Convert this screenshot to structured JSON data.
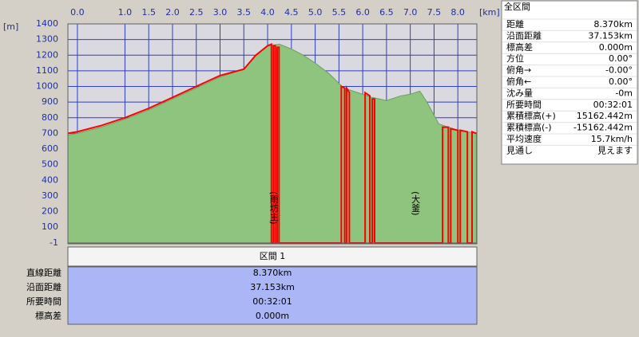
{
  "chart_data": {
    "type": "profile",
    "x_unit": "[km]",
    "y_unit": "[m]",
    "xlim": [
      -0.2,
      8.4
    ],
    "ylim": [
      -1,
      1400
    ],
    "xticks": [
      {
        "value": 0,
        "label": "0.0"
      },
      {
        "value": 1,
        "label": "1.0"
      },
      1.5,
      {
        "value": 2,
        "label": "2.0"
      },
      2.5,
      {
        "value": 3,
        "label": "3.0"
      },
      3.5,
      {
        "value": 4,
        "label": "4.0"
      },
      4.5,
      {
        "value": 5,
        "label": "5.0"
      },
      5.5,
      {
        "value": 6,
        "label": "6.0"
      },
      6.5,
      {
        "value": 7,
        "label": "7.0"
      },
      7.5,
      {
        "value": 8,
        "label": "8.0"
      }
    ],
    "yticks": [
      -1,
      100,
      200,
      300,
      400,
      500,
      600,
      700,
      800,
      900,
      1000,
      1100,
      1200,
      1300,
      1400
    ],
    "grid": true,
    "series": [
      {
        "color": "#8fc47e",
        "fill": true,
        "x": [
          -0.2,
          0,
          0.5,
          1.0,
          1.5,
          2.0,
          2.5,
          3.0,
          3.5,
          3.75,
          4.0,
          4.25,
          4.5,
          4.75,
          5.0,
          5.3,
          5.6,
          5.9,
          6.2,
          6.5,
          6.8,
          7.0,
          7.2,
          7.35,
          7.6,
          8.0,
          8.39
        ],
        "values": [
          690,
          700,
          740,
          790,
          850,
          920,
          990,
          1060,
          1110,
          1200,
          1260,
          1270,
          1240,
          1200,
          1150,
          1080,
          990,
          960,
          930,
          910,
          940,
          950,
          970,
          900,
          760,
          720,
          700
        ]
      },
      {
        "color": "#ff0000",
        "fill": false,
        "x": [
          -0.2,
          0,
          0.5,
          1.0,
          1.5,
          2.0,
          2.5,
          3.0,
          3.5,
          3.75,
          4.0,
          4.08,
          4.08,
          4.12,
          4.12,
          4.16,
          4.16,
          4.2,
          4.2,
          4.24,
          4.24,
          5.55,
          5.55,
          5.62,
          5.62,
          5.66,
          5.66,
          5.72,
          5.72,
          6.05,
          6.05,
          6.15,
          6.15,
          6.2,
          6.2,
          6.25,
          6.25,
          7.68,
          7.68,
          7.8,
          7.8,
          7.85,
          7.85,
          8.0,
          8.0,
          8.05,
          8.05,
          8.2,
          8.2,
          8.3,
          8.3,
          8.39
        ],
        "values": [
          700,
          710,
          750,
          800,
          860,
          930,
          1000,
          1070,
          1110,
          1200,
          1260,
          1270,
          -1,
          -1,
          1260,
          1260,
          -1,
          -1,
          1250,
          1250,
          -1,
          -1,
          1000,
          990,
          -1,
          -1,
          990,
          960,
          -1,
          -1,
          960,
          940,
          -1,
          -1,
          920,
          920,
          -1,
          -1,
          740,
          740,
          -1,
          -1,
          730,
          720,
          -1,
          -1,
          720,
          710,
          -1,
          -1,
          710,
          700
        ]
      }
    ],
    "annotations": [
      {
        "text": "(雨坊主)",
        "x": 4.12
      },
      {
        "text": "(大釜)",
        "x": 7.1
      }
    ]
  },
  "summary": {
    "title": "全区間",
    "rows": [
      [
        "距離",
        "8.370km"
      ],
      [
        "沿面距離",
        "37.153km"
      ],
      [
        "標高差",
        "0.000m"
      ],
      [
        "方位",
        "0.00°"
      ],
      [
        "俯角→",
        "-0.00°"
      ],
      [
        "俯角←",
        "0.00°"
      ],
      [
        "沈み量",
        "-0m"
      ],
      [
        "所要時間",
        "00:32:01"
      ],
      [
        "累積標高(+)",
        "15162.442m"
      ],
      [
        "累積標高(-)",
        "-15162.442m"
      ],
      [
        "平均速度",
        "15.7km/h"
      ],
      [
        "見通し",
        "見えます"
      ]
    ]
  },
  "section": {
    "header": "区間 1",
    "rows": [
      [
        "直線距離",
        "8.370km"
      ],
      [
        "沿面距離",
        "37.153km"
      ],
      [
        "所要時間",
        "00:32:01"
      ],
      [
        "標高差",
        "0.000m"
      ]
    ]
  }
}
